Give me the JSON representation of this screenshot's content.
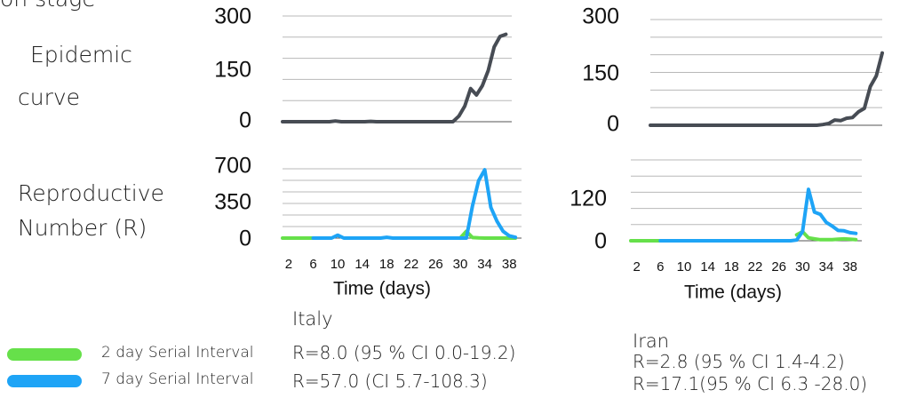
{
  "header_cut_text": "on stage",
  "row_labels": {
    "epidemic": [
      "Epidemic",
      "curve"
    ],
    "reproductive": [
      "Reproductive",
      "Number (R)"
    ]
  },
  "x_axis_title": "Time (days)",
  "x_tick_labels": [
    "2",
    "6",
    "10",
    "14",
    "18",
    "22",
    "26",
    "30",
    "34",
    "38"
  ],
  "colors": {
    "curve": "#474c54",
    "si2": "#66e04a",
    "si7": "#1ea4f6",
    "grid": "#b8b8b8"
  },
  "legend": [
    {
      "label": "2 day Serial Interval",
      "color": "#66e04a"
    },
    {
      "label": "7 day Serial Interval",
      "color": "#1ea4f6"
    }
  ],
  "panels": {
    "italy": {
      "country": "Italy",
      "stats": [
        "R=8.0 (95 % CI 0.0-19.2)",
        "R=57.0 (CI 5.7-108.3)"
      ]
    },
    "iran": {
      "country": "Iran",
      "stats": [
        "R=2.8 (95 % CI 1.4-4.2)",
        "R=17.1(95 % CI 6.3 -28.0)"
      ]
    }
  },
  "chart_data": [
    {
      "type": "line",
      "panel": "Italy epidemic curve",
      "xlabel": "",
      "ylabel": "",
      "ylim": [
        0,
        300
      ],
      "y_ticks": [
        0,
        150,
        300
      ],
      "x": [
        1,
        2,
        3,
        4,
        5,
        6,
        7,
        8,
        9,
        10,
        11,
        12,
        13,
        14,
        15,
        16,
        17,
        18,
        19,
        20,
        21,
        22,
        23,
        24,
        25,
        26,
        27,
        28,
        29,
        30,
        31,
        32,
        33,
        34,
        35,
        36,
        37,
        38,
        39,
        40
      ],
      "series": [
        {
          "color": "curve",
          "values": [
            0,
            0,
            0,
            0,
            0,
            0,
            0,
            0,
            0,
            2,
            0,
            0,
            0,
            0,
            0,
            1,
            0,
            0,
            0,
            0,
            0,
            0,
            0,
            0,
            0,
            0,
            0,
            0,
            0,
            0,
            16,
            44,
            94,
            76,
            102,
            145,
            212,
            242,
            248,
            null
          ]
        }
      ]
    },
    {
      "type": "line",
      "panel": "Italy reproductive number",
      "xlabel": "Time (days)",
      "ylabel": "",
      "ylim": [
        0,
        700
      ],
      "y_ticks": [
        0,
        350,
        700
      ],
      "x_ticks": [
        2,
        6,
        10,
        14,
        18,
        22,
        26,
        30,
        34,
        38
      ],
      "x": [
        1,
        2,
        3,
        4,
        5,
        6,
        7,
        8,
        9,
        10,
        11,
        12,
        13,
        14,
        15,
        16,
        17,
        18,
        19,
        20,
        21,
        22,
        23,
        24,
        25,
        26,
        27,
        28,
        29,
        30,
        31,
        32,
        33,
        34,
        35,
        36,
        37,
        38,
        39,
        40
      ],
      "series": [
        {
          "color": "si2",
          "values": [
            0,
            0,
            0,
            0,
            0,
            0,
            null,
            null,
            null,
            null,
            null,
            null,
            null,
            null,
            null,
            null,
            null,
            null,
            null,
            null,
            null,
            null,
            null,
            null,
            null,
            null,
            null,
            null,
            null,
            0,
            68,
            5,
            2,
            0,
            0,
            0,
            0,
            0,
            0,
            null
          ]
        },
        {
          "color": "si7",
          "values": [
            null,
            null,
            null,
            null,
            null,
            0,
            0,
            0,
            0,
            30,
            0,
            0,
            0,
            0,
            0,
            0,
            0,
            8,
            0,
            0,
            0,
            0,
            0,
            0,
            0,
            0,
            0,
            0,
            0,
            0,
            0,
            325,
            580,
            690,
            310,
            170,
            68,
            22,
            8,
            null
          ]
        }
      ]
    },
    {
      "type": "line",
      "panel": "Iran epidemic curve",
      "xlabel": "",
      "ylabel": "",
      "ylim": [
        0,
        300
      ],
      "y_ticks": [
        0,
        150,
        300
      ],
      "x": [
        1,
        2,
        3,
        4,
        5,
        6,
        7,
        8,
        9,
        10,
        11,
        12,
        13,
        14,
        15,
        16,
        17,
        18,
        19,
        20,
        21,
        22,
        23,
        24,
        25,
        26,
        27,
        28,
        29,
        30,
        31,
        32,
        33,
        34,
        35,
        36,
        37,
        38,
        39,
        40
      ],
      "series": [
        {
          "color": "curve",
          "values": [
            0,
            0,
            0,
            0,
            0,
            0,
            0,
            0,
            0,
            0,
            0,
            0,
            0,
            0,
            0,
            0,
            0,
            0,
            0,
            0,
            0,
            0,
            0,
            0,
            0,
            0,
            0,
            0,
            0,
            2,
            5,
            15,
            13,
            20,
            22,
            38,
            48,
            110,
            140,
            205
          ]
        }
      ]
    },
    {
      "type": "line",
      "panel": "Iran reproductive number",
      "xlabel": "Time (days)",
      "ylabel": "",
      "ylim": [
        0,
        220
      ],
      "y_ticks": [
        0,
        120
      ],
      "x_ticks": [
        2,
        6,
        10,
        14,
        18,
        22,
        26,
        30,
        34,
        38
      ],
      "x": [
        1,
        2,
        3,
        4,
        5,
        6,
        7,
        8,
        9,
        10,
        11,
        12,
        13,
        14,
        15,
        16,
        17,
        18,
        19,
        20,
        21,
        22,
        23,
        24,
        25,
        26,
        27,
        28,
        29,
        30,
        31,
        32,
        33,
        34,
        35,
        36,
        37,
        38,
        39,
        40
      ],
      "series": [
        {
          "color": "si2",
          "values": [
            0,
            0,
            0,
            0,
            0,
            0,
            null,
            null,
            null,
            null,
            null,
            null,
            null,
            null,
            null,
            null,
            null,
            null,
            null,
            null,
            null,
            null,
            null,
            null,
            null,
            null,
            null,
            null,
            16,
            25,
            8,
            5,
            3,
            3,
            3,
            4,
            5,
            4,
            3,
            null
          ]
        },
        {
          "color": "si7",
          "values": [
            null,
            null,
            null,
            null,
            null,
            0,
            0,
            0,
            0,
            0,
            0,
            0,
            0,
            0,
            0,
            0,
            0,
            0,
            0,
            0,
            0,
            0,
            0,
            0,
            0,
            0,
            0,
            0,
            2,
            25,
            140,
            78,
            72,
            50,
            40,
            28,
            27,
            22,
            20,
            null
          ]
        }
      ]
    }
  ]
}
